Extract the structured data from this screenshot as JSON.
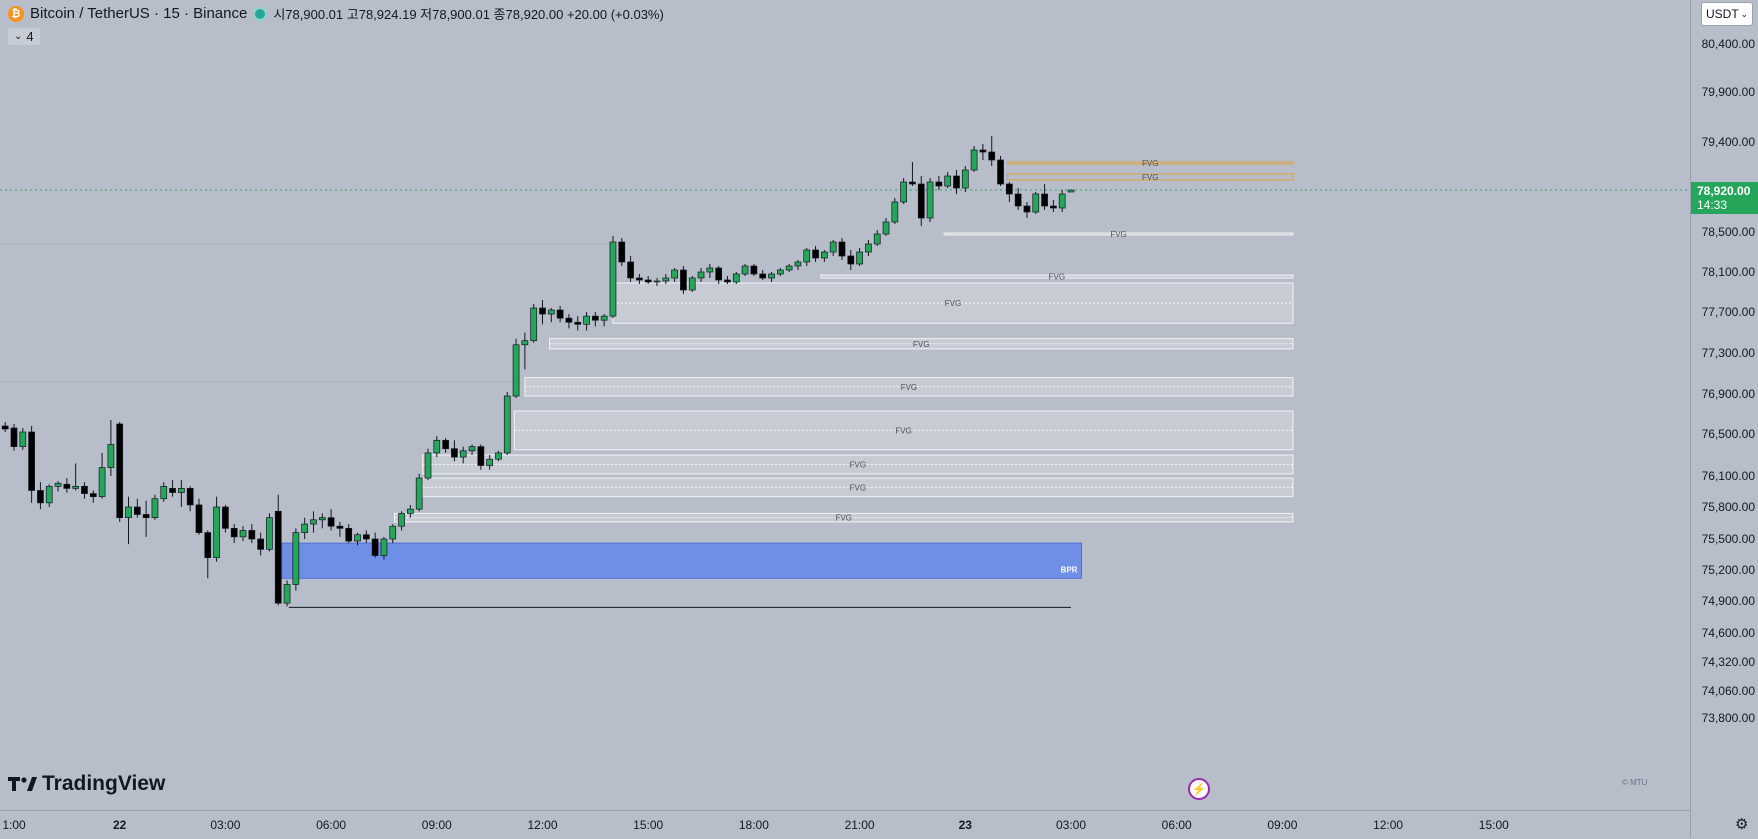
{
  "header": {
    "symbol": "Bitcoin / TetherUS · 15 · Binance",
    "btc_icon": "₿",
    "ohlc": "시78,900.01 고78,924.19 저78,900.01 종78,920.00 +20.00 (+0.03%)",
    "indicator_toggle": "4",
    "currency": "USDT"
  },
  "branding": {
    "logo_text": "TradingView",
    "small_mark": "© MTU"
  },
  "price_axis": {
    "last_price": "78,920.00",
    "countdown": "14:33"
  },
  "colors": {
    "up": "#26a65b",
    "down": "#000000",
    "fvg_fill": "#d3d6dc",
    "bpr_fill": "#6f8fe6",
    "orange": "#e0a33a",
    "last_price_line": "#26a65b"
  },
  "chart_data": {
    "type": "candlestick",
    "title": "Bitcoin / TetherUS · 15 · Binance",
    "ylim": [
      73800,
      80700
    ],
    "y_ticks": [
      "80,400.00",
      "79,900.00",
      "79,400.00",
      "78,920.00",
      "78,500.00",
      "78,100.00",
      "77,700.00",
      "77,300.00",
      "76,900.00",
      "76,500.00",
      "76,100.00",
      "75,800.00",
      "75,500.00",
      "75,200.00",
      "74,900.00",
      "74,600.00",
      "74,320.00",
      "74,060.00",
      "73,800.00"
    ],
    "y_tick_values": [
      80400,
      79900,
      79400,
      78920,
      78500,
      78100,
      77700,
      77300,
      76900,
      76500,
      76100,
      75800,
      75500,
      75200,
      74900,
      74600,
      74320,
      74060,
      73800
    ],
    "x_ticks": [
      "1:00",
      "22",
      "03:00",
      "06:00",
      "09:00",
      "12:00",
      "15:00",
      "18:00",
      "21:00",
      "23",
      "03:00",
      "06:00",
      "09:00",
      "12:00",
      "15:00"
    ],
    "x_tick_hours": [
      0,
      3,
      6,
      9,
      12,
      15,
      18,
      21,
      24,
      27,
      30,
      33,
      36,
      39,
      42
    ],
    "x_tick_bold": [
      false,
      true,
      false,
      false,
      false,
      false,
      false,
      false,
      false,
      true,
      false,
      false,
      false,
      false,
      false
    ],
    "last_price": 78920,
    "zones": [
      {
        "label": "FVG",
        "top": 79200,
        "bottom": 79190,
        "start_hour": 28.2,
        "end_hour": 36.3,
        "color": "orange"
      },
      {
        "label": "FVG",
        "top": 79080,
        "bottom": 79020,
        "start_hour": 28.2,
        "end_hour": 36.3,
        "color": "orange"
      },
      {
        "label": "FVG",
        "top": 78490,
        "bottom": 78470,
        "start_hour": 26.4,
        "end_hour": 36.3,
        "color": "fvg"
      },
      {
        "label": "FVG",
        "top": 78070,
        "bottom": 78040,
        "start_hour": 22.9,
        "end_hour": 36.3,
        "color": "fvg"
      },
      {
        "label": "FVG",
        "top": 77990,
        "bottom": 77590,
        "start_hour": 17.0,
        "end_hour": 36.3,
        "color": "fvg"
      },
      {
        "label": "FVG",
        "top": 77440,
        "bottom": 77340,
        "start_hour": 15.2,
        "end_hour": 36.3,
        "color": "fvg"
      },
      {
        "label": "FVG",
        "top": 77060,
        "bottom": 76880,
        "start_hour": 14.5,
        "end_hour": 36.3,
        "color": "fvg"
      },
      {
        "label": "FVG",
        "top": 76730,
        "bottom": 76350,
        "start_hour": 14.2,
        "end_hour": 36.3,
        "color": "fvg"
      },
      {
        "label": "FVG",
        "top": 76300,
        "bottom": 76120,
        "start_hour": 11.6,
        "end_hour": 36.3,
        "color": "fvg"
      },
      {
        "label": "FVG",
        "top": 76080,
        "bottom": 75900,
        "start_hour": 11.6,
        "end_hour": 36.3,
        "color": "fvg"
      },
      {
        "label": "FVG",
        "top": 75740,
        "bottom": 75660,
        "start_hour": 10.8,
        "end_hour": 36.3,
        "color": "fvg"
      },
      {
        "label": "BPR",
        "top": 75460,
        "bottom": 75120,
        "start_hour": 7.6,
        "end_hour": 30.3,
        "color": "bpr"
      }
    ],
    "low_line": {
      "price": 74840,
      "start_hour": 7.8,
      "end_hour": 30.0
    },
    "candles": [
      {
        "t": -0.25,
        "o": 76580,
        "h": 76620,
        "l": 76520,
        "c": 76550
      },
      {
        "t": 0.0,
        "o": 76560,
        "h": 76600,
        "l": 76340,
        "c": 76380
      },
      {
        "t": 0.25,
        "o": 76380,
        "h": 76560,
        "l": 76350,
        "c": 76520
      },
      {
        "t": 0.5,
        "o": 76520,
        "h": 76580,
        "l": 75840,
        "c": 75960
      },
      {
        "t": 0.75,
        "o": 75960,
        "h": 76040,
        "l": 75780,
        "c": 75840
      },
      {
        "t": 1.0,
        "o": 75840,
        "h": 76020,
        "l": 75800,
        "c": 76000
      },
      {
        "t": 1.25,
        "o": 76000,
        "h": 76050,
        "l": 75950,
        "c": 76030
      },
      {
        "t": 1.5,
        "o": 76020,
        "h": 76080,
        "l": 75940,
        "c": 75980
      },
      {
        "t": 1.75,
        "o": 75980,
        "h": 76220,
        "l": 75960,
        "c": 76000
      },
      {
        "t": 2.0,
        "o": 76000,
        "h": 76040,
        "l": 75880,
        "c": 75930
      },
      {
        "t": 2.25,
        "o": 75930,
        "h": 75960,
        "l": 75840,
        "c": 75900
      },
      {
        "t": 2.5,
        "o": 75900,
        "h": 76320,
        "l": 75880,
        "c": 76180
      },
      {
        "t": 2.75,
        "o": 76180,
        "h": 76640,
        "l": 76100,
        "c": 76400
      },
      {
        "t": 3.0,
        "o": 76600,
        "h": 76620,
        "l": 75660,
        "c": 75700
      },
      {
        "t": 3.25,
        "o": 75700,
        "h": 75900,
        "l": 75450,
        "c": 75800
      },
      {
        "t": 3.5,
        "o": 75800,
        "h": 75880,
        "l": 75700,
        "c": 75730
      },
      {
        "t": 3.75,
        "o": 75730,
        "h": 75860,
        "l": 75520,
        "c": 75700
      },
      {
        "t": 4.0,
        "o": 75700,
        "h": 75920,
        "l": 75680,
        "c": 75880
      },
      {
        "t": 4.25,
        "o": 75880,
        "h": 76040,
        "l": 75850,
        "c": 76000
      },
      {
        "t": 4.5,
        "o": 75980,
        "h": 76060,
        "l": 75900,
        "c": 75940
      },
      {
        "t": 4.75,
        "o": 75940,
        "h": 76060,
        "l": 75800,
        "c": 75980
      },
      {
        "t": 5.0,
        "o": 75980,
        "h": 76000,
        "l": 75760,
        "c": 75820
      },
      {
        "t": 5.25,
        "o": 75820,
        "h": 75880,
        "l": 75540,
        "c": 75560
      },
      {
        "t": 5.5,
        "o": 75560,
        "h": 75580,
        "l": 75120,
        "c": 75320
      },
      {
        "t": 5.75,
        "o": 75320,
        "h": 75900,
        "l": 75280,
        "c": 75800
      },
      {
        "t": 6.0,
        "o": 75800,
        "h": 75820,
        "l": 75560,
        "c": 75600
      },
      {
        "t": 6.25,
        "o": 75600,
        "h": 75640,
        "l": 75460,
        "c": 75520
      },
      {
        "t": 6.5,
        "o": 75520,
        "h": 75620,
        "l": 75480,
        "c": 75580
      },
      {
        "t": 6.75,
        "o": 75580,
        "h": 75640,
        "l": 75460,
        "c": 75500
      },
      {
        "t": 7.0,
        "o": 75500,
        "h": 75560,
        "l": 75340,
        "c": 75400
      },
      {
        "t": 7.25,
        "o": 75400,
        "h": 75740,
        "l": 75380,
        "c": 75700
      },
      {
        "t": 7.5,
        "o": 75760,
        "h": 75920,
        "l": 74860,
        "c": 74880
      },
      {
        "t": 7.75,
        "o": 74880,
        "h": 75100,
        "l": 74850,
        "c": 75060
      },
      {
        "t": 8.0,
        "o": 75060,
        "h": 75600,
        "l": 75000,
        "c": 75560
      },
      {
        "t": 8.25,
        "o": 75560,
        "h": 75700,
        "l": 75500,
        "c": 75640
      },
      {
        "t": 8.5,
        "o": 75640,
        "h": 75760,
        "l": 75560,
        "c": 75680
      },
      {
        "t": 8.75,
        "o": 75680,
        "h": 75740,
        "l": 75600,
        "c": 75700
      },
      {
        "t": 9.0,
        "o": 75700,
        "h": 75780,
        "l": 75580,
        "c": 75620
      },
      {
        "t": 9.25,
        "o": 75620,
        "h": 75660,
        "l": 75520,
        "c": 75600
      },
      {
        "t": 9.5,
        "o": 75600,
        "h": 75640,
        "l": 75460,
        "c": 75480
      },
      {
        "t": 9.75,
        "o": 75480,
        "h": 75560,
        "l": 75440,
        "c": 75540
      },
      {
        "t": 10.0,
        "o": 75540,
        "h": 75580,
        "l": 75460,
        "c": 75500
      },
      {
        "t": 10.25,
        "o": 75500,
        "h": 75560,
        "l": 75320,
        "c": 75340
      },
      {
        "t": 10.5,
        "o": 75340,
        "h": 75520,
        "l": 75300,
        "c": 75500
      },
      {
        "t": 10.75,
        "o": 75500,
        "h": 75640,
        "l": 75460,
        "c": 75620
      },
      {
        "t": 11.0,
        "o": 75620,
        "h": 75760,
        "l": 75580,
        "c": 75740
      },
      {
        "t": 11.25,
        "o": 75740,
        "h": 75820,
        "l": 75700,
        "c": 75780
      },
      {
        "t": 11.5,
        "o": 75780,
        "h": 76120,
        "l": 75760,
        "c": 76080
      },
      {
        "t": 11.75,
        "o": 76080,
        "h": 76360,
        "l": 76060,
        "c": 76320
      },
      {
        "t": 12.0,
        "o": 76320,
        "h": 76480,
        "l": 76280,
        "c": 76440
      },
      {
        "t": 12.25,
        "o": 76440,
        "h": 76460,
        "l": 76320,
        "c": 76360
      },
      {
        "t": 12.5,
        "o": 76360,
        "h": 76440,
        "l": 76240,
        "c": 76280
      },
      {
        "t": 12.75,
        "o": 76280,
        "h": 76380,
        "l": 76220,
        "c": 76340
      },
      {
        "t": 13.0,
        "o": 76340,
        "h": 76400,
        "l": 76300,
        "c": 76380
      },
      {
        "t": 13.25,
        "o": 76380,
        "h": 76400,
        "l": 76160,
        "c": 76200
      },
      {
        "t": 13.5,
        "o": 76200,
        "h": 76300,
        "l": 76160,
        "c": 76260
      },
      {
        "t": 13.75,
        "o": 76260,
        "h": 76340,
        "l": 76240,
        "c": 76320
      },
      {
        "t": 14.0,
        "o": 76320,
        "h": 76920,
        "l": 76300,
        "c": 76880
      },
      {
        "t": 14.25,
        "o": 76880,
        "h": 77440,
        "l": 76860,
        "c": 77380
      },
      {
        "t": 14.5,
        "o": 77380,
        "h": 77500,
        "l": 77140,
        "c": 77420
      },
      {
        "t": 14.75,
        "o": 77420,
        "h": 77780,
        "l": 77400,
        "c": 77740
      },
      {
        "t": 15.0,
        "o": 77740,
        "h": 77820,
        "l": 77580,
        "c": 77680
      },
      {
        "t": 15.25,
        "o": 77680,
        "h": 77740,
        "l": 77600,
        "c": 77720
      },
      {
        "t": 15.5,
        "o": 77720,
        "h": 77760,
        "l": 77600,
        "c": 77640
      },
      {
        "t": 15.75,
        "o": 77640,
        "h": 77680,
        "l": 77540,
        "c": 77600
      },
      {
        "t": 16.0,
        "o": 77600,
        "h": 77660,
        "l": 77520,
        "c": 77580
      },
      {
        "t": 16.25,
        "o": 77580,
        "h": 77700,
        "l": 77520,
        "c": 77660
      },
      {
        "t": 16.5,
        "o": 77660,
        "h": 77700,
        "l": 77560,
        "c": 77620
      },
      {
        "t": 16.75,
        "o": 77620,
        "h": 77680,
        "l": 77560,
        "c": 77660
      },
      {
        "t": 17.0,
        "o": 77660,
        "h": 78460,
        "l": 77640,
        "c": 78400
      },
      {
        "t": 17.25,
        "o": 78400,
        "h": 78440,
        "l": 78160,
        "c": 78200
      },
      {
        "t": 17.5,
        "o": 78200,
        "h": 78260,
        "l": 78000,
        "c": 78040
      },
      {
        "t": 17.75,
        "o": 78040,
        "h": 78080,
        "l": 77980,
        "c": 78020
      },
      {
        "t": 18.0,
        "o": 78020,
        "h": 78060,
        "l": 77980,
        "c": 78000
      },
      {
        "t": 18.25,
        "o": 78000,
        "h": 78040,
        "l": 77960,
        "c": 78010
      },
      {
        "t": 18.5,
        "o": 78010,
        "h": 78080,
        "l": 77980,
        "c": 78040
      },
      {
        "t": 18.75,
        "o": 78040,
        "h": 78140,
        "l": 78000,
        "c": 78120
      },
      {
        "t": 19.0,
        "o": 78120,
        "h": 78160,
        "l": 77880,
        "c": 77920
      },
      {
        "t": 19.25,
        "o": 77920,
        "h": 78060,
        "l": 77900,
        "c": 78040
      },
      {
        "t": 19.5,
        "o": 78040,
        "h": 78140,
        "l": 78000,
        "c": 78100
      },
      {
        "t": 19.75,
        "o": 78100,
        "h": 78180,
        "l": 78040,
        "c": 78140
      },
      {
        "t": 20.0,
        "o": 78140,
        "h": 78160,
        "l": 77980,
        "c": 78020
      },
      {
        "t": 20.25,
        "o": 78020,
        "h": 78060,
        "l": 77980,
        "c": 78000
      },
      {
        "t": 20.5,
        "o": 78000,
        "h": 78100,
        "l": 77980,
        "c": 78080
      },
      {
        "t": 20.75,
        "o": 78080,
        "h": 78180,
        "l": 78060,
        "c": 78160
      },
      {
        "t": 21.0,
        "o": 78160,
        "h": 78180,
        "l": 78060,
        "c": 78080
      },
      {
        "t": 21.25,
        "o": 78080,
        "h": 78120,
        "l": 78020,
        "c": 78040
      },
      {
        "t": 21.5,
        "o": 78040,
        "h": 78100,
        "l": 78000,
        "c": 78080
      },
      {
        "t": 21.75,
        "o": 78080,
        "h": 78140,
        "l": 78060,
        "c": 78120
      },
      {
        "t": 22.0,
        "o": 78120,
        "h": 78180,
        "l": 78100,
        "c": 78160
      },
      {
        "t": 22.25,
        "o": 78160,
        "h": 78220,
        "l": 78120,
        "c": 78200
      },
      {
        "t": 22.5,
        "o": 78200,
        "h": 78340,
        "l": 78160,
        "c": 78320
      },
      {
        "t": 22.75,
        "o": 78320,
        "h": 78360,
        "l": 78200,
        "c": 78240
      },
      {
        "t": 23.0,
        "o": 78240,
        "h": 78320,
        "l": 78200,
        "c": 78300
      },
      {
        "t": 23.25,
        "o": 78300,
        "h": 78420,
        "l": 78260,
        "c": 78400
      },
      {
        "t": 23.5,
        "o": 78400,
        "h": 78440,
        "l": 78220,
        "c": 78260
      },
      {
        "t": 23.75,
        "o": 78260,
        "h": 78320,
        "l": 78120,
        "c": 78180
      },
      {
        "t": 24.0,
        "o": 78180,
        "h": 78340,
        "l": 78160,
        "c": 78300
      },
      {
        "t": 24.25,
        "o": 78300,
        "h": 78420,
        "l": 78260,
        "c": 78380
      },
      {
        "t": 24.5,
        "o": 78380,
        "h": 78520,
        "l": 78360,
        "c": 78480
      },
      {
        "t": 24.75,
        "o": 78480,
        "h": 78640,
        "l": 78460,
        "c": 78600
      },
      {
        "t": 25.0,
        "o": 78600,
        "h": 78840,
        "l": 78580,
        "c": 78800
      },
      {
        "t": 25.25,
        "o": 78800,
        "h": 79040,
        "l": 78780,
        "c": 79000
      },
      {
        "t": 25.5,
        "o": 79000,
        "h": 79200,
        "l": 78960,
        "c": 78980
      },
      {
        "t": 25.75,
        "o": 78980,
        "h": 79060,
        "l": 78560,
        "c": 78640
      },
      {
        "t": 26.0,
        "o": 78640,
        "h": 79040,
        "l": 78600,
        "c": 79000
      },
      {
        "t": 26.25,
        "o": 79000,
        "h": 79060,
        "l": 78920,
        "c": 78960
      },
      {
        "t": 26.5,
        "o": 78960,
        "h": 79100,
        "l": 78940,
        "c": 79060
      },
      {
        "t": 26.75,
        "o": 79060,
        "h": 79120,
        "l": 78880,
        "c": 78940
      },
      {
        "t": 27.0,
        "o": 78940,
        "h": 79160,
        "l": 78900,
        "c": 79120
      },
      {
        "t": 27.25,
        "o": 79120,
        "h": 79360,
        "l": 79100,
        "c": 79320
      },
      {
        "t": 27.5,
        "o": 79320,
        "h": 79380,
        "l": 79220,
        "c": 79300
      },
      {
        "t": 27.75,
        "o": 79300,
        "h": 79460,
        "l": 79160,
        "c": 79220
      },
      {
        "t": 28.0,
        "o": 79220,
        "h": 79260,
        "l": 78960,
        "c": 78980
      },
      {
        "t": 28.25,
        "o": 78980,
        "h": 79000,
        "l": 78800,
        "c": 78880
      },
      {
        "t": 28.5,
        "o": 78880,
        "h": 78940,
        "l": 78720,
        "c": 78760
      },
      {
        "t": 28.75,
        "o": 78760,
        "h": 78800,
        "l": 78640,
        "c": 78700
      },
      {
        "t": 29.0,
        "o": 78700,
        "h": 78900,
        "l": 78680,
        "c": 78880
      },
      {
        "t": 29.25,
        "o": 78880,
        "h": 78980,
        "l": 78720,
        "c": 78760
      },
      {
        "t": 29.5,
        "o": 78760,
        "h": 78820,
        "l": 78700,
        "c": 78740
      },
      {
        "t": 29.75,
        "o": 78740,
        "h": 78920,
        "l": 78700,
        "c": 78880
      },
      {
        "t": 30.0,
        "o": 78900,
        "h": 78924,
        "l": 78900,
        "c": 78920
      }
    ]
  }
}
